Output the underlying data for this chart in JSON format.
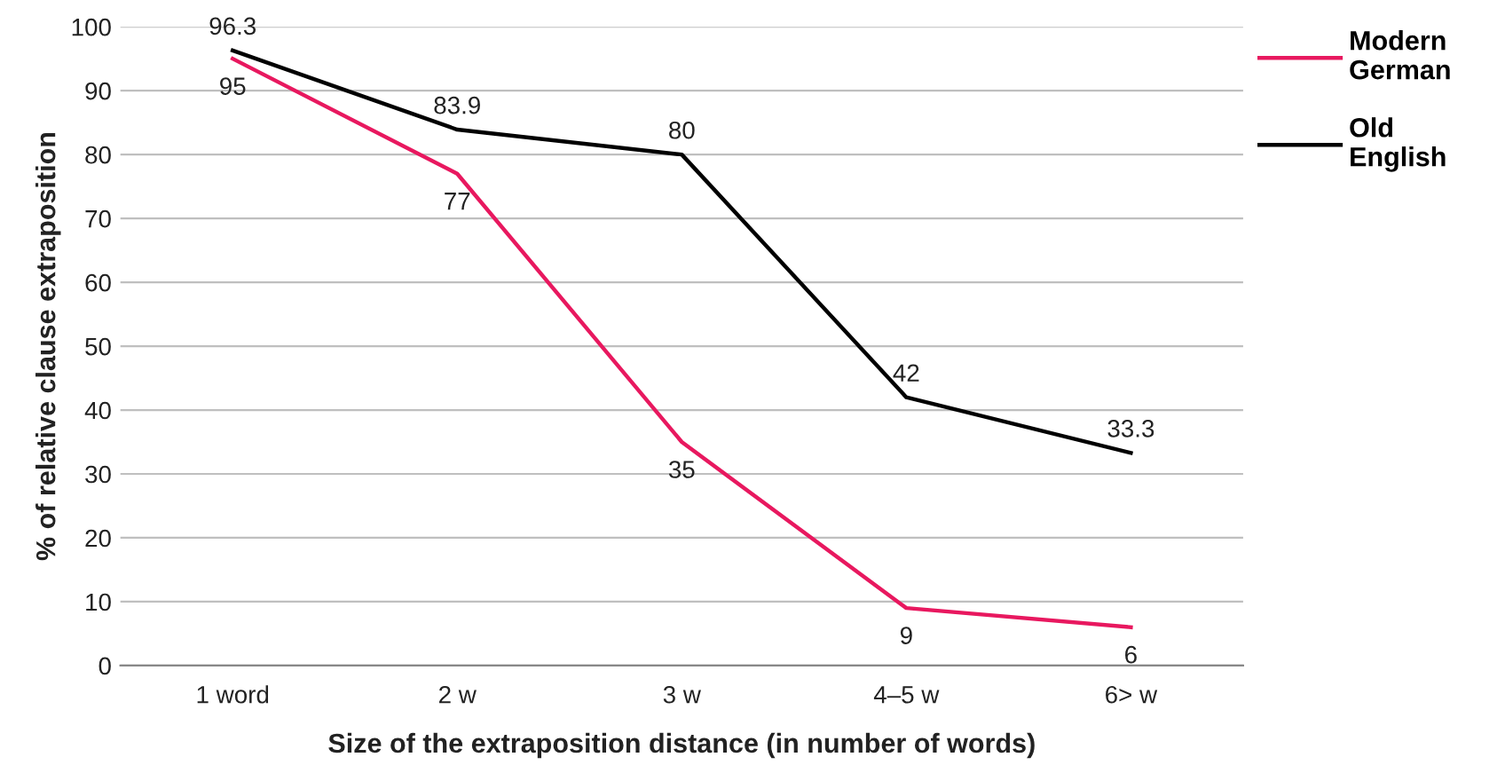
{
  "chart_data": {
    "type": "line",
    "xlabel": "Size of the extraposition distance (in number of words)",
    "ylabel": "% of relative clause extraposition",
    "categories": [
      "1 word",
      "2 w",
      "3 w",
      "4–5 w",
      "6> w"
    ],
    "series": [
      {
        "name": "Modern German",
        "color": "#e8185f",
        "values": [
          95,
          77,
          35,
          9,
          6
        ]
      },
      {
        "name": "Old English",
        "color": "#000000",
        "values": [
          96.3,
          83.9,
          80,
          42,
          33.3
        ]
      }
    ],
    "ylim": [
      0,
      100
    ],
    "yticks": [
      0,
      10,
      20,
      30,
      40,
      50,
      60,
      70,
      80,
      90,
      100
    ],
    "grid": "y",
    "legend": "top right",
    "data_labels": true,
    "marker": "none",
    "line_style": "solid"
  }
}
